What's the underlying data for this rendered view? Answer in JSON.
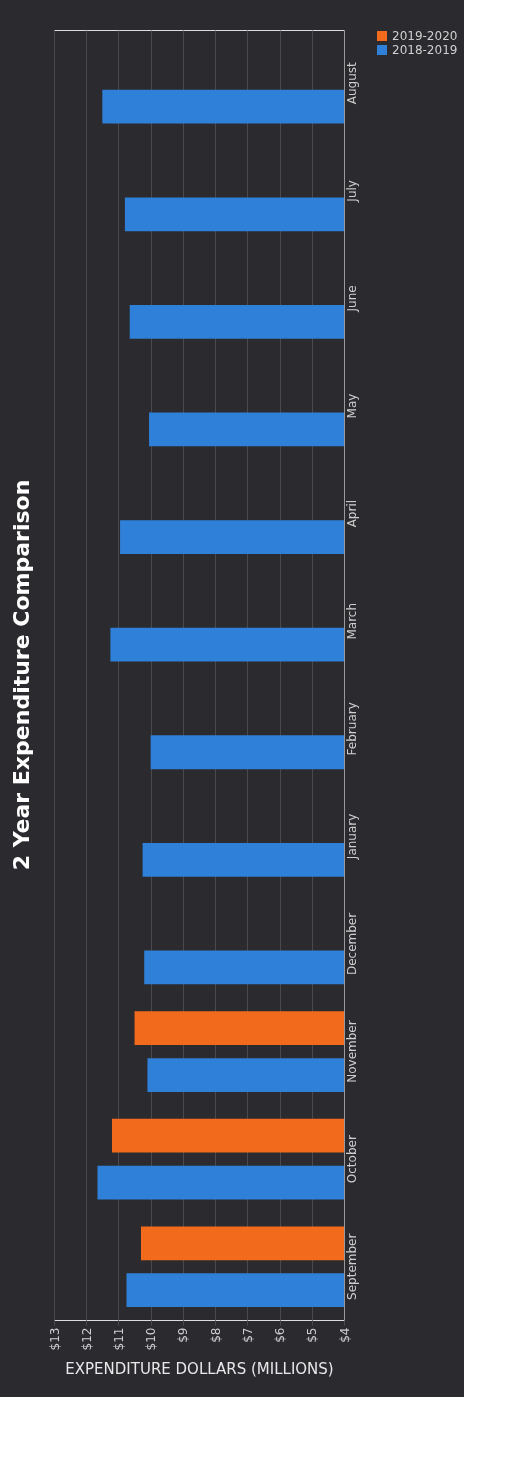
{
  "chart_data": {
    "type": "bar",
    "orientation": "horizontal",
    "title": "2 Year Expenditure Comparison",
    "xlabel": "EXPENDITURE DOLLARS (MILLIONS)",
    "categories": [
      "August",
      "July",
      "June",
      "May",
      "April",
      "March",
      "February",
      "January",
      "December",
      "November",
      "October",
      "September"
    ],
    "series": [
      {
        "name": "2019-2020",
        "color": "#f26b1d",
        "values": [
          null,
          null,
          null,
          null,
          null,
          null,
          null,
          null,
          null,
          10.5,
          11.2,
          10.3
        ]
      },
      {
        "name": "2018-2019",
        "color": "#2f80d8",
        "values": [
          11.5,
          10.8,
          10.65,
          10.05,
          10.95,
          11.25,
          10.0,
          10.25,
          10.2,
          10.1,
          11.65,
          10.75
        ]
      }
    ],
    "xlim": [
      13,
      4
    ],
    "xticks": [
      {
        "value": 13,
        "label": "$13"
      },
      {
        "value": 12,
        "label": "$12"
      },
      {
        "value": 11,
        "label": "$11"
      },
      {
        "value": 10,
        "label": "$10"
      },
      {
        "value": 9,
        "label": "$9"
      },
      {
        "value": 8,
        "label": "$8"
      },
      {
        "value": 7,
        "label": "$7"
      },
      {
        "value": 6,
        "label": "$6"
      },
      {
        "value": 5,
        "label": "$5"
      },
      {
        "value": 4,
        "label": "$4"
      }
    ],
    "grid": "x",
    "legend": "right"
  }
}
